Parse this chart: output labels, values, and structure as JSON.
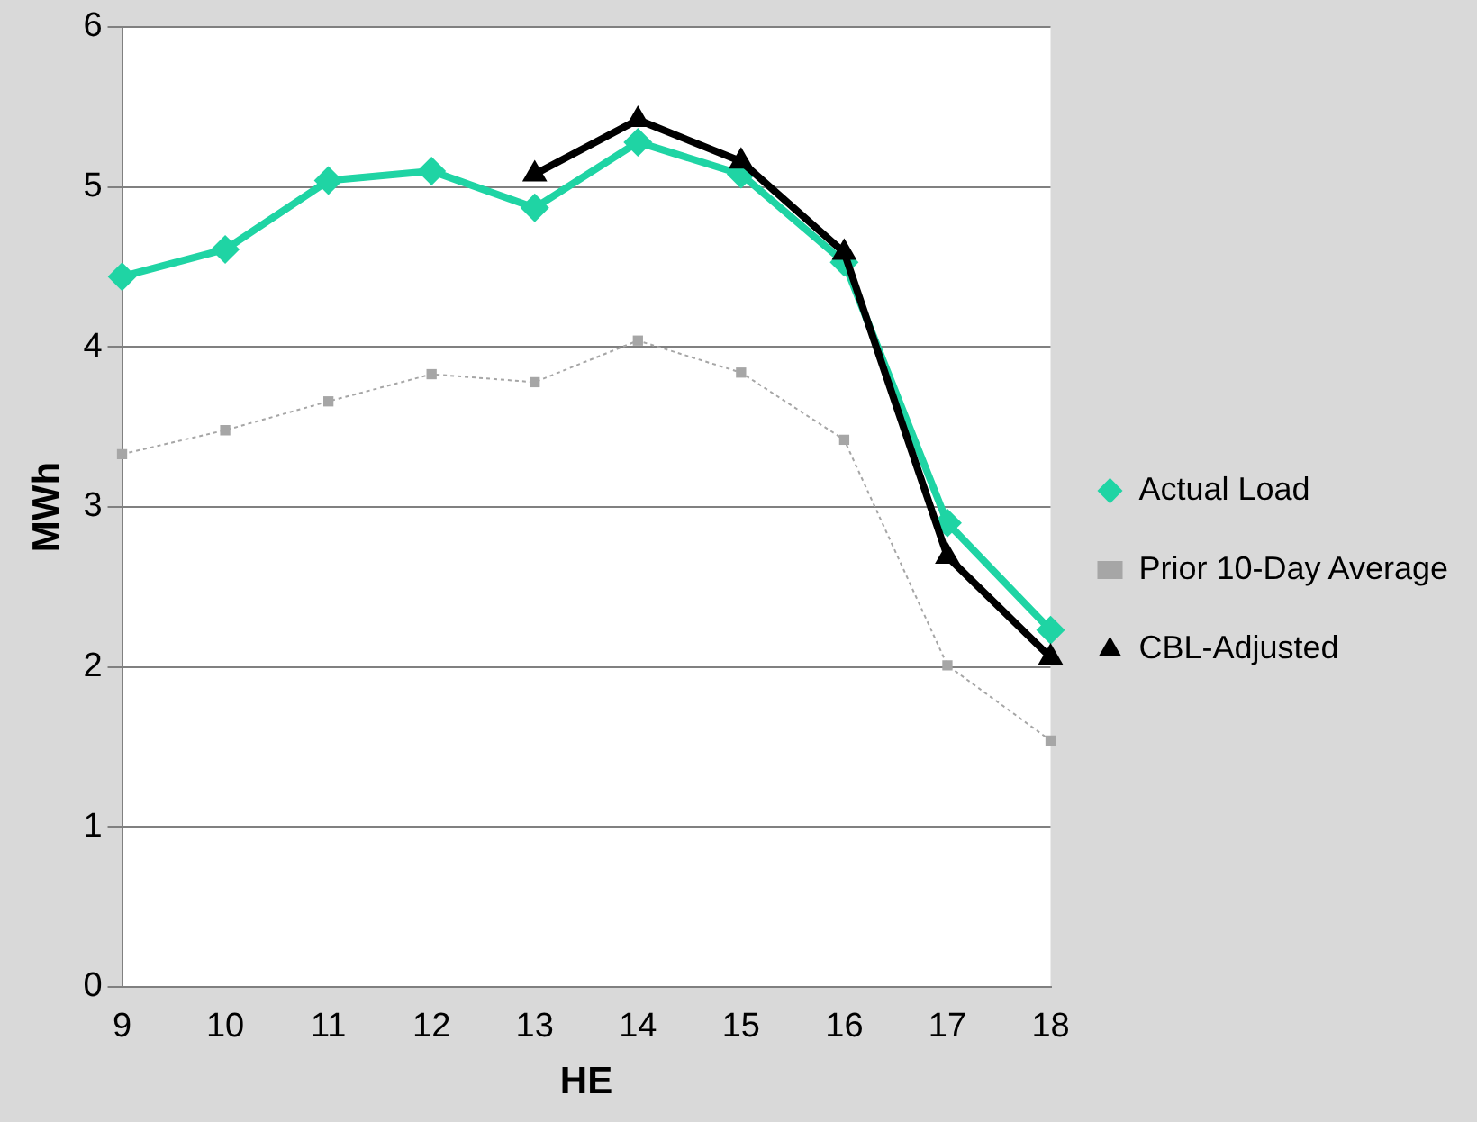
{
  "chart_data": {
    "type": "line",
    "xlabel": "HE",
    "ylabel": "MWh",
    "categories": [
      "9",
      "10",
      "11",
      "12",
      "13",
      "14",
      "15",
      "16",
      "17",
      "18"
    ],
    "ylim": [
      0,
      6
    ],
    "yticks": [
      0,
      1,
      2,
      3,
      4,
      5,
      6
    ],
    "grid": "y",
    "legend": "right",
    "series": [
      {
        "name": "Actual Load",
        "color": "#1fd4a4",
        "marker": "diamond",
        "line_style": "solid",
        "values": [
          4.44,
          4.61,
          5.04,
          5.1,
          4.87,
          5.28,
          5.08,
          4.53,
          2.9,
          2.23
        ]
      },
      {
        "name": "Prior 10-Day Average",
        "color": "#a6a6a6",
        "marker": "square",
        "line_style": "dotted",
        "values": [
          3.33,
          3.48,
          3.66,
          3.83,
          3.78,
          4.04,
          3.84,
          3.42,
          2.01,
          1.54
        ]
      },
      {
        "name": "CBL-Adjusted",
        "color": "#000000",
        "marker": "triangle",
        "line_style": "solid",
        "values": [
          null,
          null,
          null,
          null,
          5.08,
          5.42,
          5.16,
          4.59,
          2.69,
          2.06
        ]
      }
    ]
  }
}
